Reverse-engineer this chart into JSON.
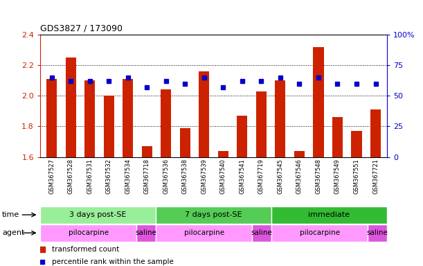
{
  "title": "GDS3827 / 173090",
  "samples": [
    "GSM367527",
    "GSM367528",
    "GSM367531",
    "GSM367532",
    "GSM367534",
    "GSM367718",
    "GSM367536",
    "GSM367538",
    "GSM367539",
    "GSM367540",
    "GSM367541",
    "GSM367719",
    "GSM367545",
    "GSM367546",
    "GSM367548",
    "GSM367549",
    "GSM367551",
    "GSM367721"
  ],
  "red_values": [
    2.11,
    2.25,
    2.1,
    2.0,
    2.11,
    1.67,
    2.04,
    1.79,
    2.16,
    1.64,
    1.87,
    2.03,
    2.1,
    1.64,
    2.32,
    1.86,
    1.77,
    1.91
  ],
  "blue_values": [
    65,
    62,
    62,
    62,
    65,
    57,
    62,
    60,
    65,
    57,
    62,
    62,
    65,
    60,
    65,
    60,
    60,
    60
  ],
  "ymin": 1.6,
  "ymax": 2.4,
  "yticks": [
    1.6,
    1.8,
    2.0,
    2.2,
    2.4
  ],
  "y2min": 0,
  "y2max": 100,
  "y2ticks": [
    0,
    25,
    50,
    75,
    100
  ],
  "y2ticklabels": [
    "0",
    "25",
    "50",
    "75",
    "100%"
  ],
  "time_groups": [
    {
      "label": "3 days post-SE",
      "start": 0,
      "end": 6,
      "color": "#99EE99"
    },
    {
      "label": "7 days post-SE",
      "start": 6,
      "end": 12,
      "color": "#55CC55"
    },
    {
      "label": "immediate",
      "start": 12,
      "end": 18,
      "color": "#33BB33"
    }
  ],
  "agent_groups": [
    {
      "label": "pilocarpine",
      "start": 0,
      "end": 5,
      "color": "#FF99FF"
    },
    {
      "label": "saline",
      "start": 5,
      "end": 6,
      "color": "#DD55DD"
    },
    {
      "label": "pilocarpine",
      "start": 6,
      "end": 11,
      "color": "#FF99FF"
    },
    {
      "label": "saline",
      "start": 11,
      "end": 12,
      "color": "#DD55DD"
    },
    {
      "label": "pilocarpine",
      "start": 12,
      "end": 17,
      "color": "#FF99FF"
    },
    {
      "label": "saline",
      "start": 17,
      "end": 18,
      "color": "#DD55DD"
    }
  ],
  "bar_color": "#CC2200",
  "dot_color": "#0000CC",
  "bg_color": "#FFFFFF",
  "plot_bg": "#FFFFFF",
  "ylabel_color_left": "#CC2200",
  "ylabel_color_right": "#0000CC",
  "legend_items": [
    {
      "label": "transformed count",
      "color": "#CC2200"
    },
    {
      "label": "percentile rank within the sample",
      "color": "#0000CC"
    }
  ]
}
